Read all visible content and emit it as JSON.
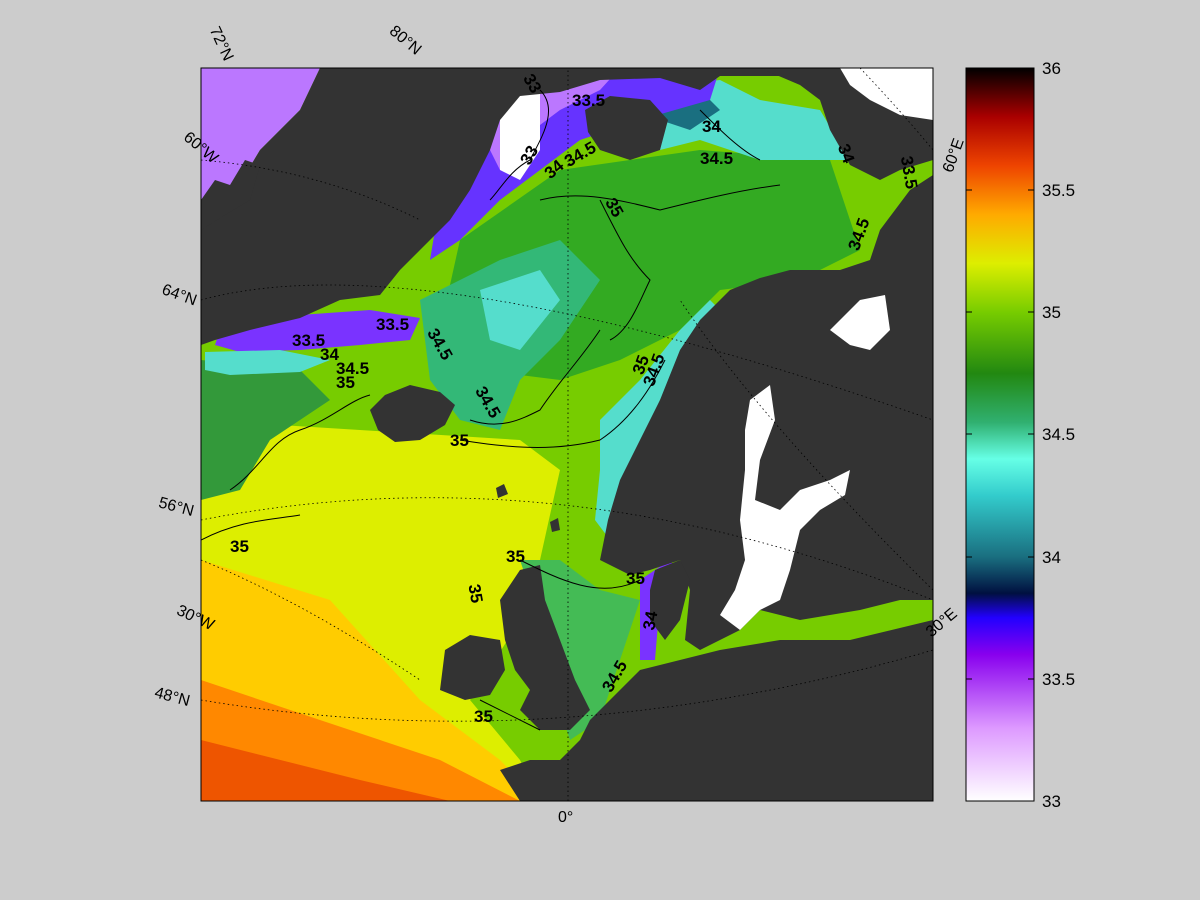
{
  "map": {
    "graticule_labels": {
      "lat_72": "72°N",
      "lat_80": "80°N",
      "lat_60w": "60°W",
      "lat_64": "64°N",
      "lat_56": "56°N",
      "lon_30w": "30°W",
      "lat_48": "48°N",
      "lon_0": "0°",
      "lon_30e": "30°E",
      "lon_60e": "60°E"
    },
    "contour_labels": {
      "c1": "33",
      "c2": "33.5",
      "c3": "33",
      "c4": "34",
      "c5": "34.5",
      "c6": "34",
      "c7": "34.5",
      "c8": "35",
      "c9": "34",
      "c10": "33.5",
      "c11": "34.5",
      "c12": "33.5",
      "c13": "33.5",
      "c14": "34",
      "c15": "34.5",
      "c16": "35",
      "c17": "34.5",
      "c18": "34.5",
      "c19": "35",
      "c20": "35",
      "c21": "34.5",
      "c22": "35",
      "c23": "35",
      "c24": "35",
      "c25": "35",
      "c26": "34",
      "c27": "34.5",
      "c28": "35"
    },
    "colors": {
      "land": "#333333",
      "ice": "#ffffff",
      "background": "#cccccc"
    }
  },
  "colorbar": {
    "ticks": [
      "36",
      "35.5",
      "35",
      "34.5",
      "34",
      "33.5",
      "33"
    ],
    "stops": [
      {
        "v": 33.0,
        "c": "#ffffff"
      },
      {
        "v": 33.3,
        "c": "#dd99ff"
      },
      {
        "v": 33.6,
        "c": "#8800ee"
      },
      {
        "v": 33.75,
        "c": "#2200ff"
      },
      {
        "v": 33.85,
        "c": "#001040"
      },
      {
        "v": 34.0,
        "c": "#1a6f80"
      },
      {
        "v": 34.25,
        "c": "#33cccc"
      },
      {
        "v": 34.4,
        "c": "#66ffe6"
      },
      {
        "v": 34.55,
        "c": "#30b070"
      },
      {
        "v": 34.75,
        "c": "#228811"
      },
      {
        "v": 35.0,
        "c": "#77cc00"
      },
      {
        "v": 35.2,
        "c": "#ddee00"
      },
      {
        "v": 35.4,
        "c": "#ffaa00"
      },
      {
        "v": 35.6,
        "c": "#ee4400"
      },
      {
        "v": 35.8,
        "c": "#aa0000"
      },
      {
        "v": 36.0,
        "c": "#000000"
      }
    ]
  }
}
